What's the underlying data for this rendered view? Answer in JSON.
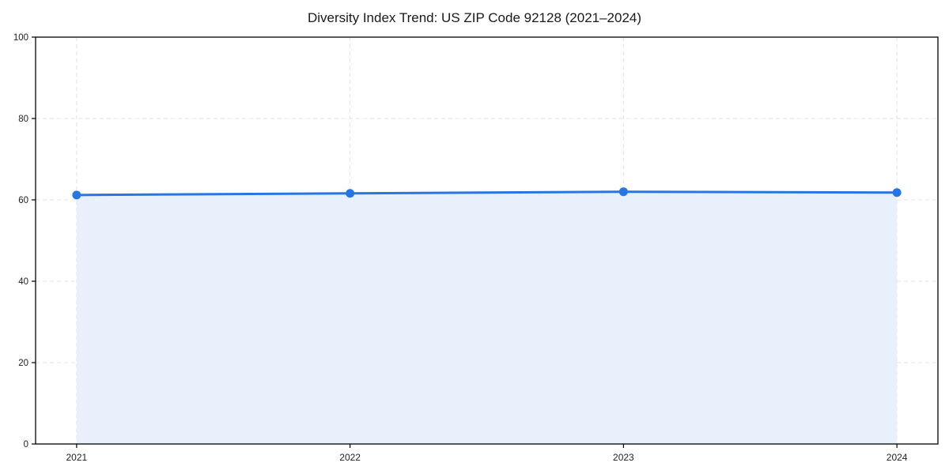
{
  "chart_data": {
    "type": "line",
    "title": "Diversity Index Trend: US ZIP Code 92128 (2021–2024)",
    "x": [
      2021,
      2022,
      2023,
      2024
    ],
    "categories": [
      "2021",
      "2022",
      "2023",
      "2024"
    ],
    "series": [
      {
        "name": "Diversity Index",
        "values": [
          61.2,
          61.6,
          62.0,
          61.8
        ]
      }
    ],
    "xlabel": "",
    "ylabel": "",
    "yticks": [
      0,
      20,
      40,
      60,
      80,
      100
    ],
    "ytick_labels": [
      "0",
      "20",
      "40",
      "60",
      "80",
      "100"
    ],
    "ylim": [
      0,
      100
    ],
    "xlim": [
      2020.85,
      2024.15
    ],
    "grid": "dashed-both-axes",
    "legend_position": "none",
    "area_under_line": true,
    "markers": true,
    "colors": {
      "line": "#2776e3",
      "marker": "#2776e3",
      "area_fill": "#e8f0fc",
      "grid": "#e3e3e3",
      "axis_frame": "#000000",
      "tick_mark": "#000000",
      "title_text": "#1a1a1a",
      "tick_text": "#222222",
      "background": "#ffffff"
    }
  }
}
